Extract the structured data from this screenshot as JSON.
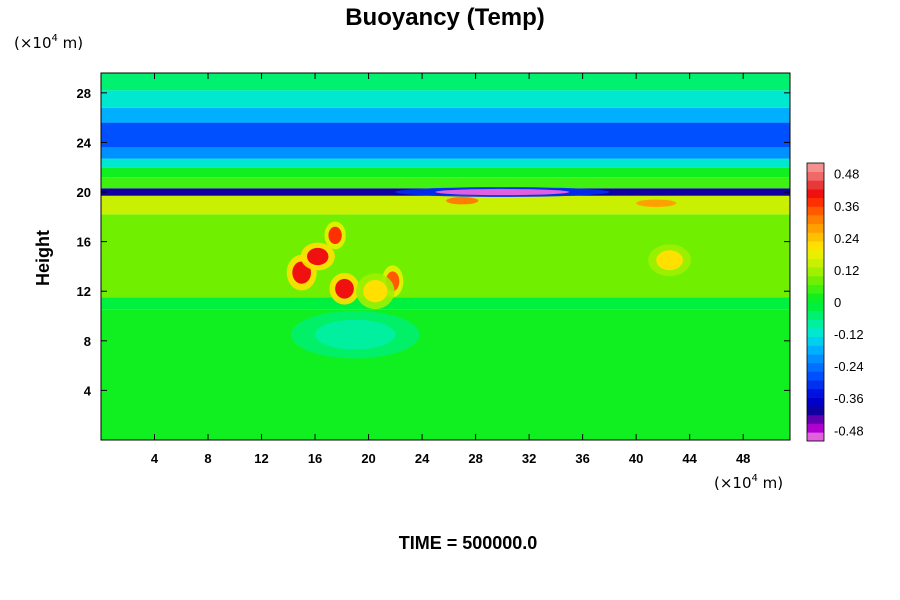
{
  "chart_data": {
    "type": "heatmap",
    "title": "Buoyancy (Temp)",
    "ylabel": "Height",
    "xlabel": "",
    "x_unit_prefix": "(×10",
    "x_unit_exp": "4",
    "x_unit_suffix": " m)",
    "y_unit_prefix": "(×10",
    "y_unit_exp": "4",
    "y_unit_suffix": " m)",
    "xlim": [
      0,
      51.5
    ],
    "ylim": [
      0,
      29.6
    ],
    "x_ticks": [
      "4",
      "8",
      "12",
      "16",
      "20",
      "24",
      "28",
      "32",
      "36",
      "40",
      "44",
      "48"
    ],
    "x_tick_values": [
      4,
      8,
      12,
      16,
      20,
      24,
      28,
      32,
      36,
      40,
      44,
      48
    ],
    "y_ticks": [
      "4",
      "8",
      "12",
      "16",
      "20",
      "24",
      "28"
    ],
    "y_tick_values": [
      4,
      8,
      12,
      16,
      20,
      24,
      28
    ],
    "colorbar": {
      "min": -0.52,
      "max": 0.52,
      "ticks": [
        "0.48",
        "0.36",
        "0.24",
        "0.12",
        "0",
        "-0.12",
        "-0.24",
        "-0.36",
        "-0.48"
      ],
      "tick_values": [
        0.48,
        0.36,
        0.24,
        0.12,
        0,
        -0.12,
        -0.24,
        -0.36,
        -0.48
      ],
      "colors": [
        "#e060e0",
        "#b000d0",
        "#6000b0",
        "#1000a0",
        "#0000c8",
        "#0010e0",
        "#0030f0",
        "#0050ff",
        "#0070ff",
        "#0090ff",
        "#00b0ff",
        "#00d0f0",
        "#00e8d0",
        "#00f0a0",
        "#00f070",
        "#00f040",
        "#10f020",
        "#40f010",
        "#70f000",
        "#a0f000",
        "#c8f000",
        "#e8f000",
        "#ffe000",
        "#ffc000",
        "#ffa000",
        "#ff8000",
        "#ff5a00",
        "#ff3000",
        "#f01010",
        "#e83838",
        "#f06868",
        "#f49090"
      ]
    },
    "bands": [
      {
        "from": 0,
        "to": 10.5,
        "value": 0.0
      },
      {
        "from": 10.5,
        "to": 11.5,
        "value": -0.02
      },
      {
        "from": 11.5,
        "to": 18.2,
        "value": 0.07
      },
      {
        "from": 18.2,
        "to": 19.7,
        "value": 0.14
      },
      {
        "from": 19.7,
        "to": 20.3,
        "value": -0.42
      },
      {
        "from": 20.3,
        "to": 21.2,
        "value": 0.04
      },
      {
        "from": 21.2,
        "to": 22.0,
        "value": 0.02
      },
      {
        "from": 22.0,
        "to": 22.7,
        "value": -0.1
      },
      {
        "from": 22.7,
        "to": 23.6,
        "value": -0.2
      },
      {
        "from": 23.6,
        "to": 25.6,
        "value": -0.27
      },
      {
        "from": 25.6,
        "to": 26.8,
        "value": -0.18
      },
      {
        "from": 26.8,
        "to": 28.2,
        "value": -0.11
      },
      {
        "from": 28.2,
        "to": 29.6,
        "value": -0.04
      }
    ],
    "features": [
      {
        "x": 15.0,
        "y": 13.5,
        "rx": 0.7,
        "ry": 0.9,
        "value": 0.42
      },
      {
        "x": 16.2,
        "y": 14.8,
        "rx": 0.8,
        "ry": 0.7,
        "value": 0.4
      },
      {
        "x": 17.5,
        "y": 16.5,
        "rx": 0.5,
        "ry": 0.7,
        "value": 0.36
      },
      {
        "x": 18.2,
        "y": 12.2,
        "rx": 0.7,
        "ry": 0.8,
        "value": 0.4
      },
      {
        "x": 21.8,
        "y": 12.8,
        "rx": 0.5,
        "ry": 0.8,
        "value": 0.34
      },
      {
        "x": 20.5,
        "y": 12.0,
        "rx": 0.9,
        "ry": 0.9,
        "value": 0.2
      },
      {
        "x": 42.5,
        "y": 14.5,
        "rx": 1.0,
        "ry": 0.8,
        "value": 0.2
      },
      {
        "x": 27.0,
        "y": 19.3,
        "rx": 1.2,
        "ry": 0.3,
        "value": 0.3
      },
      {
        "x": 41.5,
        "y": 19.1,
        "rx": 1.5,
        "ry": 0.3,
        "value": 0.26
      },
      {
        "x": 19.0,
        "y": 8.5,
        "rx": 3.0,
        "ry": 1.2,
        "value": -0.08
      },
      {
        "x": 30.0,
        "y": 20.0,
        "rx": 5.0,
        "ry": 0.25,
        "value": -0.5
      }
    ]
  },
  "footer": {
    "time_label": "TIME = 500000.0"
  }
}
